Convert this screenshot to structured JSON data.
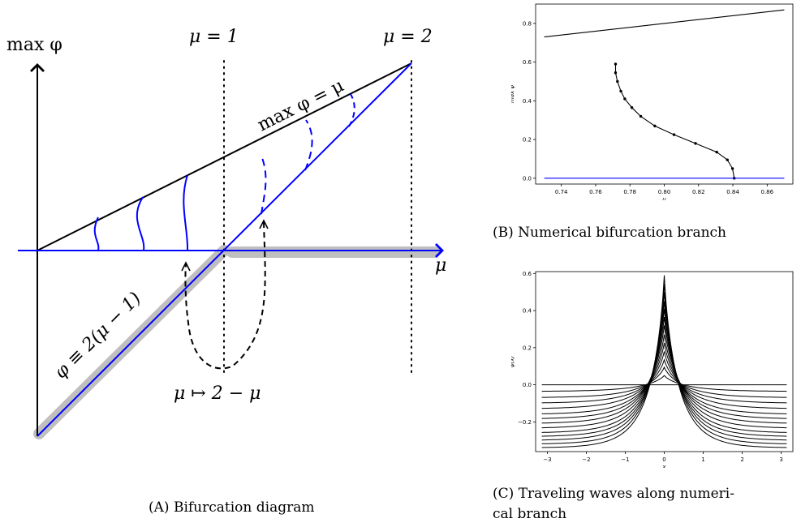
{
  "figure_a": {
    "ylabel": "max φ",
    "xlabel": "μ",
    "mu1_label": "μ = 1",
    "mu2_label": "μ = 2",
    "upper_line_label": "max φ = μ",
    "lower_line_label": "φ ≡ 2(μ − 1)",
    "map_label": "μ ↦ 2 − μ",
    "caption_tag": "(A)",
    "caption_text": "Bifurcation diagram"
  },
  "figure_b": {
    "caption_tag": "(B)",
    "caption_text": "Numerical bifurcation branch"
  },
  "figure_c": {
    "caption_tag": "(C)",
    "caption_text_line1": "Traveling waves along numeri-",
    "caption_text_line2": "cal branch"
  },
  "colors": {
    "branch": "#0000ff",
    "line": "#000000",
    "highlight": "#bfbfbf"
  },
  "chart_data": [
    {
      "type": "line",
      "title": "",
      "xlabel": "μ",
      "ylabel": "max φ",
      "xlim": [
        0.725,
        0.875
      ],
      "ylim": [
        -0.03,
        0.9
      ],
      "xticks": [
        0.74,
        0.76,
        0.78,
        0.8,
        0.82,
        0.84,
        0.86
      ],
      "xtick_labels": [
        "0.74",
        "0.76",
        "0.78",
        "0.80",
        "0.82",
        "0.84",
        "0.86"
      ],
      "yticks": [
        0.0,
        0.2,
        0.4,
        0.6,
        0.8
      ],
      "ytick_labels": [
        "0.0",
        "0.2",
        "0.4",
        "0.6",
        "0.8"
      ],
      "series": [
        {
          "color": "#000000",
          "markers": false,
          "points": [
            [
              0.73,
              0.73
            ],
            [
              0.87,
              0.87
            ]
          ]
        },
        {
          "color": "#000000",
          "markers": true,
          "points": [
            [
              0.7716,
              0.59
            ],
            [
              0.7716,
              0.545
            ],
            [
              0.7727,
              0.5
            ],
            [
              0.7747,
              0.45
            ],
            [
              0.777,
              0.41
            ],
            [
              0.7811,
              0.365
            ],
            [
              0.7863,
              0.32
            ],
            [
              0.7945,
              0.27
            ],
            [
              0.8057,
              0.225
            ],
            [
              0.8182,
              0.18
            ],
            [
              0.8306,
              0.135
            ],
            [
              0.8368,
              0.095
            ],
            [
              0.8398,
              0.05
            ],
            [
              0.8408,
              0.0
            ]
          ]
        },
        {
          "color": "#0000ff",
          "markers": false,
          "points": [
            [
              0.73,
              0.0
            ],
            [
              0.87,
              0.0
            ]
          ]
        }
      ]
    },
    {
      "type": "line",
      "title": "",
      "xlabel": "x",
      "ylabel": "φ(x)",
      "xlim": [
        -3.3,
        3.3
      ],
      "ylim": [
        -0.36,
        0.61
      ],
      "xticks": [
        -3,
        -2,
        -1,
        0,
        1,
        2,
        3
      ],
      "xtick_labels": [
        "−3",
        "−2",
        "−1",
        "0",
        "1",
        "2",
        "3"
      ],
      "yticks": [
        -0.2,
        0.0,
        0.2,
        0.4,
        0.6
      ],
      "ytick_labels": [
        "−0.2",
        "0.0",
        "0.2",
        "0.4",
        "0.6"
      ],
      "x_range": [
        -3.1416,
        3.1416
      ],
      "waves": [
        {
          "peak": 0.0,
          "floor": 0.0,
          "width": 1.0
        },
        {
          "peak": 0.05,
          "floor": -0.036,
          "width": 1.0
        },
        {
          "peak": 0.095,
          "floor": -0.07,
          "width": 0.97
        },
        {
          "peak": 0.135,
          "floor": -0.1,
          "width": 0.94
        },
        {
          "peak": 0.18,
          "floor": -0.13,
          "width": 0.91
        },
        {
          "peak": 0.225,
          "floor": -0.16,
          "width": 0.88
        },
        {
          "peak": 0.27,
          "floor": -0.185,
          "width": 0.85
        },
        {
          "peak": 0.32,
          "floor": -0.21,
          "width": 0.82
        },
        {
          "peak": 0.365,
          "floor": -0.235,
          "width": 0.79
        },
        {
          "peak": 0.41,
          "floor": -0.26,
          "width": 0.76
        },
        {
          "peak": 0.45,
          "floor": -0.28,
          "width": 0.73
        },
        {
          "peak": 0.5,
          "floor": -0.3,
          "width": 0.7
        },
        {
          "peak": 0.545,
          "floor": -0.32,
          "width": 0.67
        },
        {
          "peak": 0.59,
          "floor": -0.34,
          "width": 0.64
        }
      ]
    }
  ]
}
